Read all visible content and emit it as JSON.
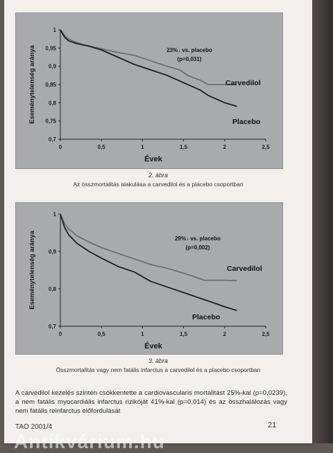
{
  "chart_data": [
    {
      "type": "line",
      "xlabel": "Évek",
      "ylabel": "Eseménytelenség aránya",
      "xlim": [
        0,
        2.5
      ],
      "ylim": [
        0.7,
        1
      ],
      "x_ticks": [
        "0",
        "0,5",
        "1",
        "1,5",
        "2",
        "2,5"
      ],
      "y_ticks": [
        "0,7",
        "0,75",
        "0,8",
        "0,85",
        "0,9",
        "0,95",
        "1"
      ],
      "annotation_lines": [
        "23%↓ vs. placebo",
        "(p=0,031)"
      ],
      "series": [
        {
          "name": "Carvedilol",
          "points": [
            [
              0,
              1
            ],
            [
              0.05,
              0.985
            ],
            [
              0.1,
              0.975
            ],
            [
              0.2,
              0.965
            ],
            [
              0.3,
              0.958
            ],
            [
              0.5,
              0.948
            ],
            [
              0.7,
              0.938
            ],
            [
              0.9,
              0.93
            ],
            [
              1.1,
              0.915
            ],
            [
              1.3,
              0.9
            ],
            [
              1.45,
              0.89
            ],
            [
              1.55,
              0.875
            ],
            [
              1.7,
              0.862
            ],
            [
              1.8,
              0.85
            ],
            [
              2.0,
              0.85
            ],
            [
              2.15,
              0.85
            ]
          ]
        },
        {
          "name": "Placebo",
          "points": [
            [
              0,
              1
            ],
            [
              0.05,
              0.98
            ],
            [
              0.1,
              0.97
            ],
            [
              0.2,
              0.962
            ],
            [
              0.35,
              0.955
            ],
            [
              0.5,
              0.945
            ],
            [
              0.7,
              0.925
            ],
            [
              0.9,
              0.905
            ],
            [
              1.1,
              0.89
            ],
            [
              1.3,
              0.875
            ],
            [
              1.5,
              0.855
            ],
            [
              1.7,
              0.835
            ],
            [
              1.8,
              0.82
            ],
            [
              1.9,
              0.81
            ],
            [
              2.0,
              0.8
            ],
            [
              2.15,
              0.79
            ]
          ]
        }
      ]
    },
    {
      "type": "line",
      "xlabel": "Évek",
      "ylabel": "Eseménytelenség aránya",
      "xlim": [
        0,
        2.5
      ],
      "ylim": [
        0.7,
        1
      ],
      "x_ticks": [
        "0",
        "0,5",
        "1",
        "1,5",
        "2",
        "2,5"
      ],
      "y_ticks": [
        "0,7",
        "0,8",
        "0,9",
        "1"
      ],
      "annotation_lines": [
        "29%↓ vs. placebo",
        "(p=0,002)"
      ],
      "series": [
        {
          "name": "Carvedilol",
          "points": [
            [
              0,
              1
            ],
            [
              0.05,
              0.975
            ],
            [
              0.1,
              0.96
            ],
            [
              0.2,
              0.942
            ],
            [
              0.35,
              0.925
            ],
            [
              0.5,
              0.91
            ],
            [
              0.7,
              0.895
            ],
            [
              0.9,
              0.88
            ],
            [
              1.1,
              0.865
            ],
            [
              1.3,
              0.855
            ],
            [
              1.45,
              0.845
            ],
            [
              1.6,
              0.835
            ],
            [
              1.75,
              0.823
            ],
            [
              2.0,
              0.823
            ],
            [
              2.15,
              0.822
            ]
          ]
        },
        {
          "name": "Placebo",
          "points": [
            [
              0,
              1
            ],
            [
              0.05,
              0.965
            ],
            [
              0.1,
              0.945
            ],
            [
              0.2,
              0.922
            ],
            [
              0.35,
              0.9
            ],
            [
              0.5,
              0.882
            ],
            [
              0.7,
              0.86
            ],
            [
              0.9,
              0.845
            ],
            [
              1.1,
              0.82
            ],
            [
              1.3,
              0.805
            ],
            [
              1.5,
              0.79
            ],
            [
              1.7,
              0.775
            ],
            [
              1.9,
              0.76
            ],
            [
              2.0,
              0.752
            ],
            [
              2.15,
              0.742
            ]
          ]
        }
      ]
    }
  ],
  "captions": [
    {
      "number": "2. ábra",
      "text": "Az összmortalitás alakulása a carvedilol és a placebo csoportban"
    },
    {
      "number": "3. ábra",
      "text": "Összmortalitás vagy nem fatális infarctus a carvedilol és a placebo csoportban"
    }
  ],
  "body_text": "A carvedilol kezelés szintén csökkentette a cardiovascularis mortalitást 25%-kal (p=0,0239), a nem fatális myocardiális infarctus rizikóját 41%-kal (p=0,014) és az összhalálozás vagy nem fatális reinfarctus előfordulását",
  "footer": {
    "left": "TAO 2001/4",
    "page_number": "21"
  },
  "watermark": "Antikvárium.hu",
  "colors": {
    "figure_bg": "#a9aaac",
    "placebo": "#1f1f22",
    "carvedilol": "#6c6e74"
  }
}
